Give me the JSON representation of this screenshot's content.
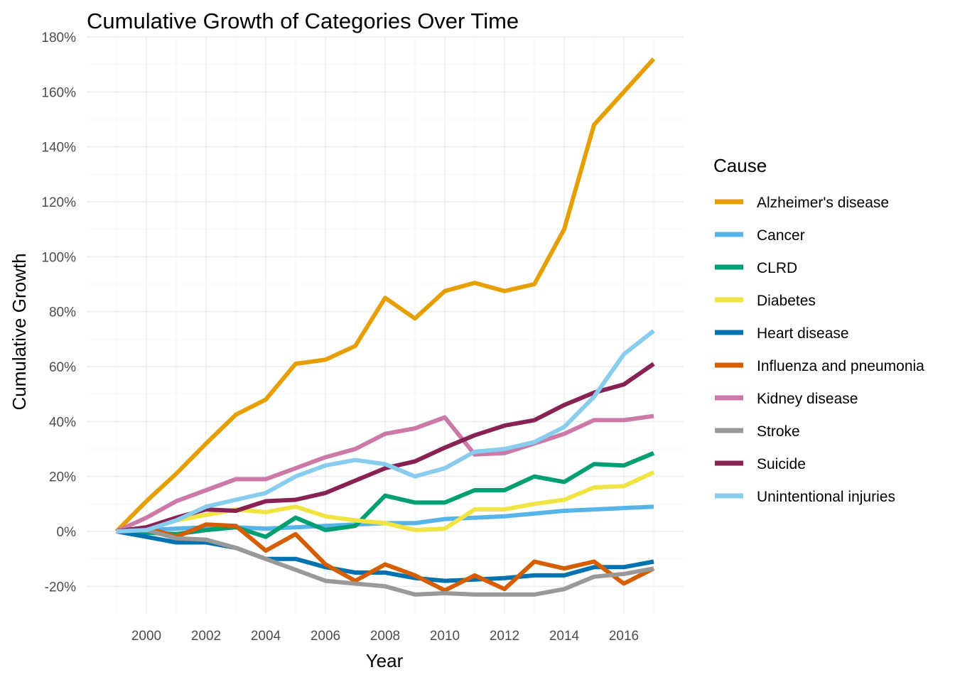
{
  "chart_data": {
    "type": "line",
    "title": "Cumulative Growth of Categories Over Time",
    "xlabel": "Year",
    "ylabel": "Cumulative Growth",
    "x": [
      1999,
      2000,
      2001,
      2002,
      2003,
      2004,
      2005,
      2006,
      2007,
      2008,
      2009,
      2010,
      2011,
      2012,
      2013,
      2014,
      2015,
      2016,
      2017
    ],
    "xticks": [
      2000,
      2002,
      2004,
      2006,
      2008,
      2010,
      2012,
      2014,
      2016
    ],
    "xtick_labels": [
      "2000",
      "2002",
      "2004",
      "2006",
      "2008",
      "2010",
      "2012",
      "2014",
      "2016"
    ],
    "xlim": [
      1998,
      2018
    ],
    "ylim": [
      -0.3,
      1.8
    ],
    "yticks": [
      -0.2,
      0,
      0.2,
      0.4,
      0.6,
      0.8,
      1.0,
      1.2,
      1.4,
      1.6,
      1.8
    ],
    "ytick_labels": [
      "-20%",
      "0%",
      "20%",
      "40%",
      "60%",
      "80%",
      "100%",
      "120%",
      "140%",
      "160%",
      "180%"
    ],
    "grid": true,
    "legend": {
      "title": "Cause",
      "position": "right"
    },
    "series": [
      {
        "name": "Alzheimer's disease",
        "color": "#E69F00",
        "values": [
          0,
          0.11,
          0.21,
          0.32,
          0.425,
          0.48,
          0.61,
          0.625,
          0.675,
          0.85,
          0.775,
          0.875,
          0.905,
          0.875,
          0.9,
          1.1,
          1.48,
          1.6,
          1.72
        ]
      },
      {
        "name": "Cancer",
        "color": "#56B4E9",
        "values": [
          0,
          0.005,
          0.01,
          0.015,
          0.015,
          0.01,
          0.015,
          0.02,
          0.025,
          0.03,
          0.03,
          0.045,
          0.05,
          0.055,
          0.065,
          0.075,
          0.08,
          0.085,
          0.09
        ]
      },
      {
        "name": "CLRD",
        "color": "#009E73",
        "values": [
          0,
          -0.005,
          -0.01,
          0.005,
          0.015,
          -0.02,
          0.05,
          0.005,
          0.02,
          0.13,
          0.105,
          0.105,
          0.15,
          0.15,
          0.2,
          0.18,
          0.245,
          0.24,
          0.285
        ]
      },
      {
        "name": "Diabetes",
        "color": "#F0E442",
        "values": [
          0,
          0.015,
          0.04,
          0.06,
          0.08,
          0.07,
          0.09,
          0.055,
          0.04,
          0.03,
          0.005,
          0.01,
          0.08,
          0.08,
          0.1,
          0.115,
          0.16,
          0.165,
          0.215
        ]
      },
      {
        "name": "Heart disease",
        "color": "#0072B2",
        "values": [
          0,
          -0.02,
          -0.04,
          -0.04,
          -0.06,
          -0.1,
          -0.1,
          -0.13,
          -0.15,
          -0.15,
          -0.17,
          -0.18,
          -0.175,
          -0.17,
          -0.16,
          -0.16,
          -0.13,
          -0.13,
          -0.11
        ]
      },
      {
        "name": "Influenza and pneumonia",
        "color": "#D55E00",
        "values": [
          0,
          0.015,
          -0.02,
          0.025,
          0.02,
          -0.07,
          -0.01,
          -0.12,
          -0.18,
          -0.12,
          -0.16,
          -0.215,
          -0.16,
          -0.21,
          -0.11,
          -0.135,
          -0.11,
          -0.19,
          -0.135
        ]
      },
      {
        "name": "Kidney disease",
        "color": "#CC79A7",
        "values": [
          0,
          0.05,
          0.11,
          0.15,
          0.19,
          0.19,
          0.23,
          0.27,
          0.3,
          0.355,
          0.375,
          0.415,
          0.28,
          0.285,
          0.32,
          0.355,
          0.405,
          0.405,
          0.42
        ]
      },
      {
        "name": "Stroke",
        "color": "#999999",
        "values": [
          0,
          0.005,
          -0.025,
          -0.03,
          -0.06,
          -0.1,
          -0.14,
          -0.18,
          -0.19,
          -0.2,
          -0.23,
          -0.225,
          -0.23,
          -0.23,
          -0.23,
          -0.21,
          -0.165,
          -0.155,
          -0.135
        ]
      },
      {
        "name": "Suicide",
        "color": "#882255",
        "values": [
          0,
          0.015,
          0.05,
          0.08,
          0.075,
          0.11,
          0.115,
          0.14,
          0.185,
          0.23,
          0.255,
          0.305,
          0.35,
          0.385,
          0.405,
          0.46,
          0.505,
          0.535,
          0.61
        ]
      },
      {
        "name": "Unintentional injuries",
        "color": "#88CCEE",
        "values": [
          0,
          0.005,
          0.04,
          0.09,
          0.115,
          0.14,
          0.2,
          0.24,
          0.26,
          0.245,
          0.2,
          0.23,
          0.29,
          0.3,
          0.325,
          0.38,
          0.49,
          0.645,
          0.73
        ]
      }
    ]
  }
}
